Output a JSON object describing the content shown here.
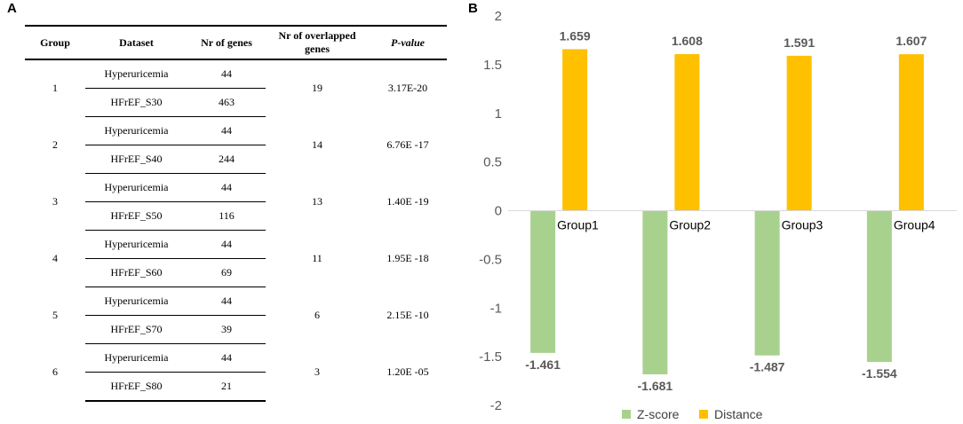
{
  "panel_a": {
    "label": "A",
    "headers": [
      "Group",
      "Dataset",
      "Nr of genes",
      "Nr of overlapped genes",
      "P-value"
    ],
    "groups": [
      {
        "group": "1",
        "rows": [
          {
            "dataset": "Hyperuricemia",
            "genes": "44"
          },
          {
            "dataset": "HFrEF_S30",
            "genes": "463"
          }
        ],
        "overlapped": "19",
        "pvalue": "3.17E-20"
      },
      {
        "group": "2",
        "rows": [
          {
            "dataset": "Hyperuricemia",
            "genes": "44"
          },
          {
            "dataset": "HFrEF_S40",
            "genes": "244"
          }
        ],
        "overlapped": "14",
        "pvalue": "6.76E -17"
      },
      {
        "group": "3",
        "rows": [
          {
            "dataset": "Hyperuricemia",
            "genes": "44"
          },
          {
            "dataset": "HFrEF_S50",
            "genes": "116"
          }
        ],
        "overlapped": "13",
        "pvalue": "1.40E -19"
      },
      {
        "group": "4",
        "rows": [
          {
            "dataset": "Hyperuricemia",
            "genes": "44"
          },
          {
            "dataset": "HFrEF_S60",
            "genes": "69"
          }
        ],
        "overlapped": "11",
        "pvalue": "1.95E -18"
      },
      {
        "group": "5",
        "rows": [
          {
            "dataset": "Hyperuricemia",
            "genes": "44"
          },
          {
            "dataset": "HFrEF_S70",
            "genes": "39"
          }
        ],
        "overlapped": "6",
        "pvalue": "2.15E -10"
      },
      {
        "group": "6",
        "rows": [
          {
            "dataset": "Hyperuricemia",
            "genes": "44"
          },
          {
            "dataset": "HFrEF_S80",
            "genes": "21"
          }
        ],
        "overlapped": "3",
        "pvalue": "1.20E -05"
      }
    ]
  },
  "panel_b": {
    "label": "B"
  },
  "chart_data": {
    "type": "bar",
    "categories": [
      "Group1",
      "Group2",
      "Group3",
      "Group4"
    ],
    "series": [
      {
        "name": "Z-score",
        "values": [
          -1.461,
          -1.681,
          -1.487,
          -1.554
        ],
        "labels": [
          "-1.461",
          "-1.681",
          "-1.487",
          "-1.554"
        ],
        "color": "#a9d18e"
      },
      {
        "name": "Distance",
        "values": [
          1.659,
          1.608,
          1.591,
          1.607
        ],
        "labels": [
          "1.659",
          "1.608",
          "1.591",
          "1.607"
        ],
        "color": "#ffc000"
      }
    ],
    "yticks": [
      "2",
      "1.5",
      "1",
      "0.5",
      "0",
      "-0.5",
      "-1",
      "-1.5",
      "-2"
    ],
    "ylim": [
      -2,
      2
    ],
    "legend": "bottom",
    "title": "",
    "xlabel": "",
    "ylabel": ""
  }
}
